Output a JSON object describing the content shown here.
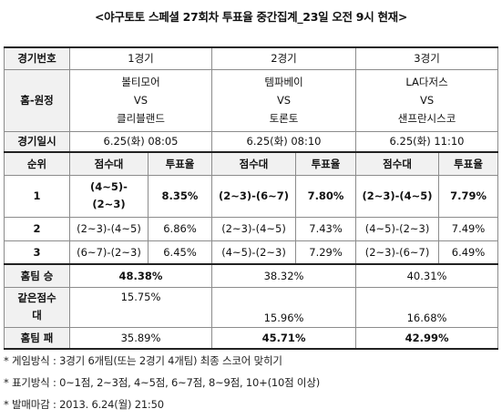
{
  "title": "<야구토토 스페셜 27회차 투표율 중간집계_23일 오전 9시 현재>",
  "table": {
    "row_game_number_label": "경기번호",
    "games": [
      "1경기",
      "2경기",
      "3경기"
    ],
    "row_matchup_label": "홈-원정",
    "matchups": [
      {
        "home": "볼티모어",
        "vs": "VS",
        "away": "클리블랜드"
      },
      {
        "home": "템파베이",
        "vs": "VS",
        "away": "토론토"
      },
      {
        "home": "LA다저스",
        "vs": "VS",
        "away": "샌프란시스코"
      }
    ],
    "row_datetime_label": "경기일시",
    "datetimes": [
      "6.25(화) 08:05",
      "6.25(화) 08:10",
      "6.25(화) 11:10"
    ],
    "rank_label": "순위",
    "score_range_label": "점수대",
    "vote_rate_label": "투표율",
    "ranks": [
      {
        "rank": "1",
        "cells": [
          {
            "score_line1": "(4~5)-",
            "score_line2": "(2~3)",
            "rate": "8.35%"
          },
          {
            "score_line1": "(2~3)-(6~7)",
            "score_line2": "",
            "rate": "7.80%"
          },
          {
            "score_line1": "(2~3)-(4~5)",
            "score_line2": "",
            "rate": "7.79%"
          }
        ]
      },
      {
        "rank": "2",
        "cells": [
          {
            "score_line1": "(2~3)-(4~5)",
            "rate": "6.86%"
          },
          {
            "score_line1": "(2~3)-(4~5)",
            "rate": "7.43%"
          },
          {
            "score_line1": "(4~5)-(2~3)",
            "rate": "7.49%"
          }
        ]
      },
      {
        "rank": "3",
        "cells": [
          {
            "score_line1": "(6~7)-(2~3)",
            "rate": "6.45%"
          },
          {
            "score_line1": "(4~5)-(2~3)",
            "rate": "7.29%"
          },
          {
            "score_line1": "(2~3)-(6~7)",
            "rate": "6.49%"
          }
        ]
      }
    ],
    "home_win_label": "홈팀 승",
    "home_win": [
      "48.38%",
      "38.32%",
      "40.31%"
    ],
    "draw_label_line1": "같은점수",
    "draw_label_line2": "대",
    "draw": [
      "15.75%",
      "15.96%",
      "16.68%"
    ],
    "home_loss_label": "홈팀 패",
    "home_loss": [
      "35.89%",
      "45.71%",
      "42.99%"
    ]
  },
  "notes": [
    "* 게임방식 : 3경기 6개팀(또는 2경기 4개팀) 최종 스코어 맞히기",
    "* 표기방식 : 0~1점, 2~3점, 4~5점, 6~7점, 8~9점, 10+(10점 이상)",
    "* 발매마감 : 2013. 6.24(월) 21:50"
  ]
}
